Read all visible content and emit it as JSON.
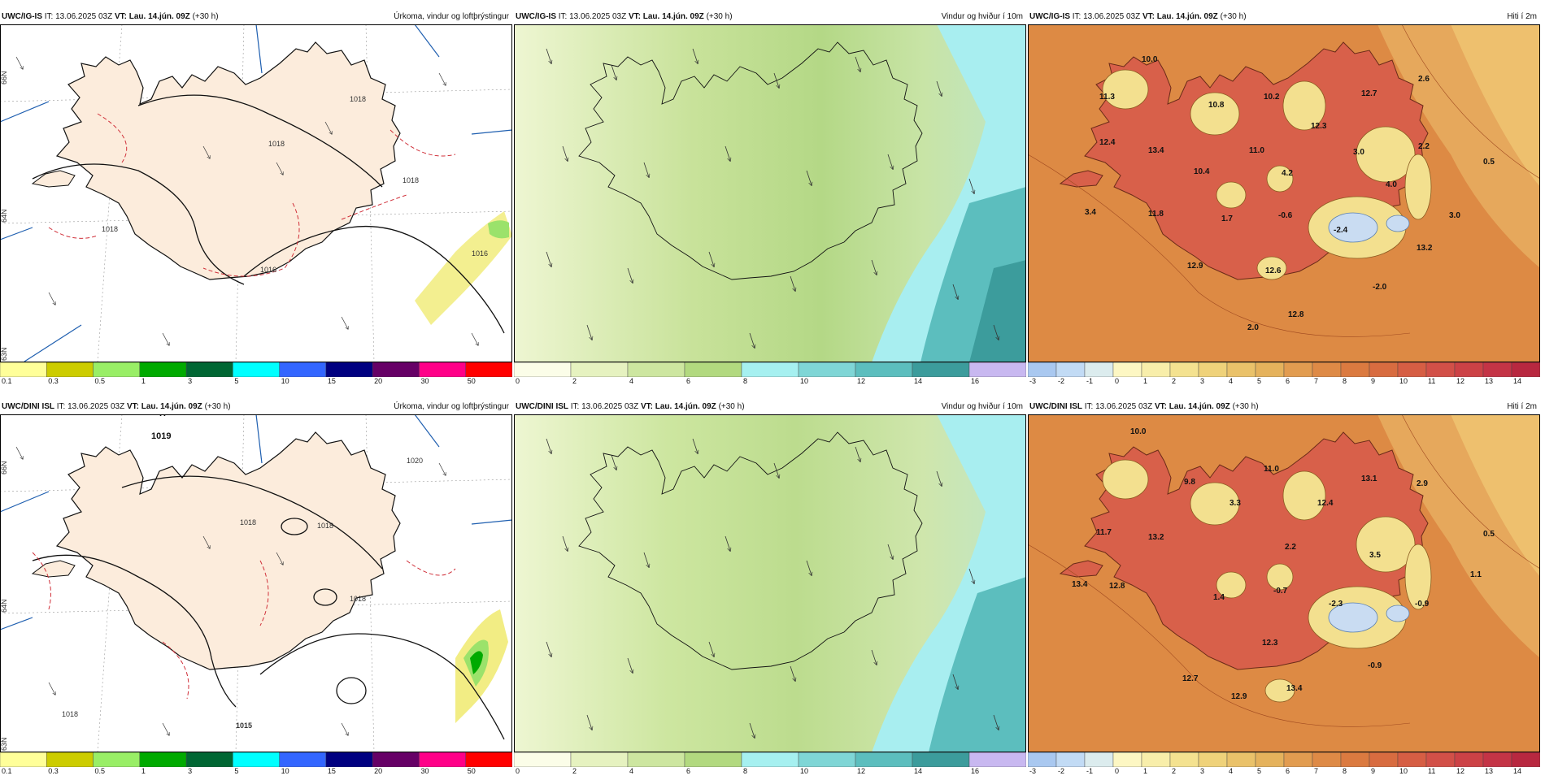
{
  "rows": [
    {
      "model": "UWC/IG-IS",
      "it_label": "IT:",
      "it_value": "13.06.2025 03Z",
      "vt_label": "VT:",
      "vt_value": "Lau. 14.jún. 09Z",
      "lead": "(+30 h)",
      "precip_title": "Úrkoma, vindur og loftþrýstingur",
      "wind_title": "Vindur og hviður í 10m",
      "temp_title": "Hiti í 2m",
      "isobar_labels": [
        "1018",
        "1018",
        "1018",
        "1018",
        "1016",
        "1016"
      ],
      "temp_values": [
        "10.0",
        "11.3",
        "12.4",
        "13.4",
        "10.8",
        "10.2",
        "12.7",
        "2.6",
        "12.3",
        "11.0",
        "3.0",
        "2.2",
        "0.5",
        "10.4",
        "4.2",
        "4.0",
        "3.4",
        "11.8",
        "1.7",
        "-0.6",
        "-2.4",
        "3.0",
        "13.2",
        "12.9",
        "12.6",
        "-2.0",
        "2.0",
        "12.8"
      ]
    },
    {
      "model": "UWC/DINI ISL",
      "it_label": "IT:",
      "it_value": "13.06.2025 03Z",
      "vt_label": "VT:",
      "vt_value": "Lau. 14.jún. 09Z",
      "lead": "(+30 h)",
      "precip_title": "Úrkoma, vindur og loftþrýstingur",
      "wind_title": "Vindur og hviður í 10m",
      "temp_title": "Hiti í 2m",
      "high_label": "1019",
      "isobar_labels": [
        "1018",
        "1018",
        "1020",
        "1018",
        "1018",
        "1015"
      ],
      "temp_values": [
        "10.0",
        "9.8",
        "11.0",
        "13.1",
        "2.9",
        "3.3",
        "12.4",
        "11.7",
        "13.2",
        "2.2",
        "0.5",
        "3.5",
        "13.4",
        "12.8",
        "1.4",
        "-0.7",
        "-2.3",
        "-0.9",
        "1.1",
        "12.3",
        "12.7",
        "-0.9",
        "12.9",
        "13.4"
      ]
    }
  ],
  "lat_labels": [
    "66N",
    "64N",
    "63N"
  ],
  "colorbars": {
    "precip": {
      "labels": [
        "0.1",
        "0.3",
        "0.5",
        "1",
        "3",
        "5",
        "10",
        "15",
        "20",
        "30",
        "50"
      ],
      "colors": [
        "#ffff99",
        "#cccc00",
        "#99ee66",
        "#00aa00",
        "#006633",
        "#00ffff",
        "#3366ff",
        "#000080",
        "#660066",
        "#ff0088",
        "#ff0000"
      ]
    },
    "wind": {
      "labels": [
        "0",
        "2",
        "4",
        "6",
        "8",
        "10",
        "12",
        "14",
        "16"
      ],
      "colors": [
        "#fbfde8",
        "#e6f2c0",
        "#cde6a0",
        "#b2d97f",
        "#a6f0f0",
        "#7fd6d6",
        "#5cbebe",
        "#3c9c9c",
        "#c8b8f0"
      ]
    },
    "temp": {
      "labels": [
        "-3",
        "-2",
        "-1",
        "0",
        "1",
        "2",
        "3",
        "4",
        "5",
        "6",
        "7",
        "8",
        "9",
        "10",
        "11",
        "12",
        "13",
        "14"
      ],
      "colors": [
        "#a9c8f0",
        "#c2dbf5",
        "#dcecee",
        "#fdf7c3",
        "#f8eeaa",
        "#f4e290",
        "#efd27a",
        "#eac26a",
        "#e5b25c",
        "#e29c50",
        "#de8a46",
        "#db7a40",
        "#d86c40",
        "#d65e44",
        "#d25048",
        "#cc4246",
        "#c43446",
        "#b82840"
      ]
    }
  }
}
